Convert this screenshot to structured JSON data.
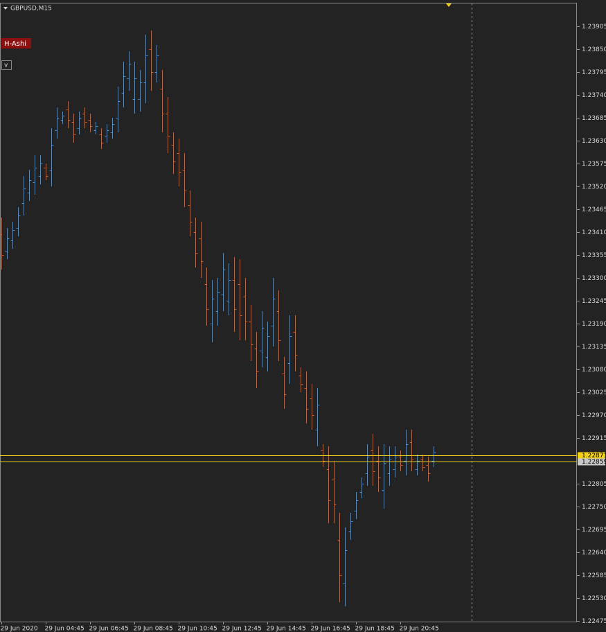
{
  "chart_data": {
    "type": "ohlc",
    "title": "GBPUSD,M15",
    "indicator_label": "H-Ashi",
    "menu_button": "v",
    "up_color": "#3b8fe0",
    "down_color": "#e5561f",
    "background": "#232323",
    "ylim": [
      1.22475,
      1.23905
    ],
    "yticks": [
      1.23905,
      {
        "value": 1.2385,
        "label": "1.23850"
      },
      1.23795,
      {
        "value": 1.2374,
        "label": "1.23740"
      },
      1.23685,
      {
        "value": 1.2363,
        "label": "1.23630"
      },
      1.23575,
      {
        "value": 1.2352,
        "label": "1.23520"
      },
      1.23465,
      {
        "value": 1.2341,
        "label": "1.23410"
      },
      1.23355,
      {
        "value": 1.233,
        "label": "1.23300"
      },
      1.23245,
      {
        "value": 1.2319,
        "label": "1.23190"
      },
      1.23135,
      {
        "value": 1.2308,
        "label": "1.23080"
      },
      1.23025,
      {
        "value": 1.2297,
        "label": "1.22970"
      },
      1.22915,
      1.22805,
      {
        "value": 1.2275,
        "label": "1.22750"
      },
      1.22695,
      {
        "value": 1.2264,
        "label": "1.22640"
      },
      1.22585,
      {
        "value": 1.2253,
        "label": "1.22530"
      },
      1.22475
    ],
    "hlines": [
      {
        "value": 1.22873,
        "color": "#f2d21b"
      },
      {
        "value": 1.22859,
        "color": "#f2d21b"
      }
    ],
    "categories": [
      "29 Jun 2020",
      null,
      null,
      null,
      null,
      null,
      null,
      null,
      "29 Jun 04:45",
      null,
      null,
      null,
      null,
      null,
      null,
      null,
      "29 Jun 06:45",
      null,
      null,
      null,
      null,
      null,
      null,
      null,
      "29 Jun 08:45",
      null,
      null,
      null,
      null,
      null,
      null,
      null,
      "29 Jun 10:45",
      null,
      null,
      null,
      null,
      null,
      null,
      null,
      "29 Jun 12:45",
      null,
      null,
      null,
      null,
      null,
      null,
      null,
      "29 Jun 14:45",
      null,
      null,
      null,
      null,
      null,
      null,
      null,
      "29 Jun 16:45",
      null,
      null,
      null,
      null,
      null,
      null,
      null,
      "29 Jun 18:45",
      null,
      null,
      null,
      null,
      null,
      null,
      null,
      "29 Jun 20:45",
      null,
      null,
      null,
      null,
      null,
      null
    ],
    "open": [
      1.23405,
      1.23365,
      1.2339,
      1.2342,
      1.2348,
      1.23505,
      1.2353,
      1.23545,
      1.23565,
      1.2356,
      1.23655,
      1.2368,
      1.23705,
      1.23675,
      1.2366,
      1.23695,
      1.2368,
      1.23655,
      1.23645,
      1.2364,
      1.2365,
      1.23685,
      1.23745,
      1.2378,
      1.2373,
      1.2373,
      1.2377,
      1.2385,
      1.23795,
      1.23755,
      1.23695,
      1.2362,
      1.236,
      1.2356,
      1.23475,
      1.2341,
      1.23395,
      1.23285,
      1.2319,
      1.2322,
      1.2326,
      1.23245,
      1.23295,
      1.23285,
      1.23255,
      1.23195,
      1.2313,
      1.23125,
      1.2311,
      1.23185,
      1.2322,
      1.2307,
      1.23095,
      1.2317,
      1.23065,
      1.23035,
      1.2301,
      1.22935,
      1.22885,
      1.2284,
      1.22815,
      1.2267,
      1.22565,
      1.2269,
      1.2274,
      1.22785,
      1.2283,
      1.22885,
      1.2286,
      1.2279,
      1.2283,
      1.2284,
      1.2287,
      1.2286,
      1.22905,
      1.2284,
      1.22865,
      1.2285,
      1.2286
    ],
    "high": [
      1.23445,
      1.2342,
      1.23435,
      1.2347,
      1.23545,
      1.2356,
      1.23595,
      1.23595,
      1.23575,
      1.2366,
      1.2371,
      1.237,
      1.23725,
      1.23695,
      1.237,
      1.2371,
      1.23695,
      1.23675,
      1.2366,
      1.2367,
      1.23685,
      1.2376,
      1.2382,
      1.23845,
      1.2382,
      1.238,
      1.23885,
      1.23895,
      1.2386,
      1.238,
      1.23735,
      1.2365,
      1.23635,
      1.236,
      1.2351,
      1.23445,
      1.23435,
      1.23325,
      1.23295,
      1.233,
      1.2336,
      1.23335,
      1.2335,
      1.23345,
      1.233,
      1.23235,
      1.2317,
      1.2322,
      1.23195,
      1.233,
      1.2327,
      1.2311,
      1.2321,
      1.2321,
      1.23085,
      1.23075,
      1.23045,
      1.23035,
      1.229,
      1.22895,
      1.2286,
      1.22735,
      1.227,
      1.22735,
      1.22785,
      1.2282,
      1.229,
      1.22925,
      1.22895,
      1.229,
      1.22895,
      1.22895,
      1.22885,
      1.22935,
      1.22935,
      1.22875,
      1.22875,
      1.2287,
      1.22895
    ],
    "low": [
      1.2332,
      1.23345,
      1.2337,
      1.234,
      1.2345,
      1.23485,
      1.235,
      1.23525,
      1.23535,
      1.2352,
      1.23635,
      1.2367,
      1.2366,
      1.23625,
      1.23645,
      1.2366,
      1.2365,
      1.23645,
      1.2361,
      1.23625,
      1.23635,
      1.2365,
      1.2371,
      1.2375,
      1.23695,
      1.237,
      1.2372,
      1.2375,
      1.2377,
      1.2365,
      1.236,
      1.2355,
      1.2352,
      1.2347,
      1.234,
      1.23325,
      1.233,
      1.23185,
      1.23145,
      1.23185,
      1.2322,
      1.2321,
      1.2317,
      1.2315,
      1.2315,
      1.231,
      1.23035,
      1.23085,
      1.23075,
      1.23135,
      1.231,
      1.22985,
      1.23045,
      1.23075,
      1.23025,
      1.2295,
      1.22935,
      1.22895,
      1.22845,
      1.2271,
      1.2271,
      1.2252,
      1.2251,
      1.2267,
      1.2272,
      1.2277,
      1.228,
      1.228,
      1.22785,
      1.22745,
      1.228,
      1.2282,
      1.22835,
      1.22825,
      1.22835,
      1.22825,
      1.22835,
      1.2281,
      1.22845
    ],
    "close": [
      1.23355,
      1.23395,
      1.23415,
      1.2345,
      1.23515,
      1.23535,
      1.23565,
      1.23575,
      1.23545,
      1.2362,
      1.23685,
      1.2369,
      1.2368,
      1.23645,
      1.23685,
      1.23675,
      1.23665,
      1.23665,
      1.23625,
      1.23655,
      1.2367,
      1.23725,
      1.23785,
      1.23815,
      1.2378,
      1.2377,
      1.23835,
      1.23795,
      1.23835,
      1.23695,
      1.2364,
      1.2358,
      1.23555,
      1.2351,
      1.23435,
      1.2336,
      1.2334,
      1.23225,
      1.2325,
      1.23265,
      1.2332,
      1.23295,
      1.23225,
      1.2321,
      1.23195,
      1.2314,
      1.23075,
      1.2318,
      1.2316,
      1.2325,
      1.2315,
      1.2302,
      1.2316,
      1.23115,
      1.23045,
      1.22985,
      1.2297,
      1.22995,
      1.2286,
      1.22765,
      1.22755,
      1.22585,
      1.22645,
      1.22715,
      1.22765,
      1.22805,
      1.2287,
      1.22835,
      1.2282,
      1.22855,
      1.22865,
      1.2287,
      1.2285,
      1.229,
      1.22865,
      1.2286,
      1.22845,
      1.2283,
      1.2288
    ]
  }
}
